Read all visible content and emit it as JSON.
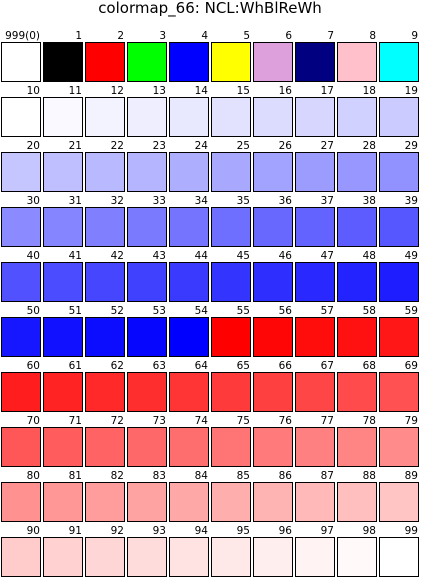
{
  "title": "colormap_66:  NCL:WhBlReWh",
  "cells": [
    {
      "label": "999(0)",
      "color": "#ffffff"
    },
    {
      "label": "1",
      "color": "#000000"
    },
    {
      "label": "2",
      "color": "#ff0000"
    },
    {
      "label": "3",
      "color": "#00ff00"
    },
    {
      "label": "4",
      "color": "#0000ff"
    },
    {
      "label": "5",
      "color": "#ffff00"
    },
    {
      "label": "6",
      "color": "#dda0dd"
    },
    {
      "label": "7",
      "color": "#000080"
    },
    {
      "label": "8",
      "color": "#ffc0cb"
    },
    {
      "label": "9",
      "color": "#00ffff"
    },
    {
      "label": "10",
      "color": "#ffffff"
    },
    {
      "label": "11",
      "color": "#f9f9ff"
    },
    {
      "label": "12",
      "color": "#f3f3ff"
    },
    {
      "label": "13",
      "color": "#eeeeff"
    },
    {
      "label": "14",
      "color": "#e8e8ff"
    },
    {
      "label": "15",
      "color": "#e2e2ff"
    },
    {
      "label": "16",
      "color": "#dcdcff"
    },
    {
      "label": "17",
      "color": "#d6d6ff"
    },
    {
      "label": "18",
      "color": "#d1d1ff"
    },
    {
      "label": "19",
      "color": "#cbcbff"
    },
    {
      "label": "20",
      "color": "#c5c5ff"
    },
    {
      "label": "21",
      "color": "#bfbfff"
    },
    {
      "label": "22",
      "color": "#b9b9ff"
    },
    {
      "label": "23",
      "color": "#b4b4ff"
    },
    {
      "label": "24",
      "color": "#aeaeff"
    },
    {
      "label": "25",
      "color": "#a8a8ff"
    },
    {
      "label": "26",
      "color": "#a2a2ff"
    },
    {
      "label": "27",
      "color": "#9c9cff"
    },
    {
      "label": "28",
      "color": "#9797ff"
    },
    {
      "label": "29",
      "color": "#9191ff"
    },
    {
      "label": "30",
      "color": "#8b8bff"
    },
    {
      "label": "31",
      "color": "#8585ff"
    },
    {
      "label": "32",
      "color": "#8080ff"
    },
    {
      "label": "33",
      "color": "#7a7aff"
    },
    {
      "label": "34",
      "color": "#7474ff"
    },
    {
      "label": "35",
      "color": "#6e6eff"
    },
    {
      "label": "36",
      "color": "#6868ff"
    },
    {
      "label": "37",
      "color": "#6363ff"
    },
    {
      "label": "38",
      "color": "#5d5dff"
    },
    {
      "label": "39",
      "color": "#5757ff"
    },
    {
      "label": "40",
      "color": "#5151ff"
    },
    {
      "label": "41",
      "color": "#4b4bff"
    },
    {
      "label": "42",
      "color": "#4646ff"
    },
    {
      "label": "43",
      "color": "#4040ff"
    },
    {
      "label": "44",
      "color": "#3a3aff"
    },
    {
      "label": "45",
      "color": "#3434ff"
    },
    {
      "label": "46",
      "color": "#2e2eff"
    },
    {
      "label": "47",
      "color": "#2929ff"
    },
    {
      "label": "48",
      "color": "#2323ff"
    },
    {
      "label": "49",
      "color": "#1d1dff"
    },
    {
      "label": "50",
      "color": "#1717ff"
    },
    {
      "label": "51",
      "color": "#1111ff"
    },
    {
      "label": "52",
      "color": "#0c0cff"
    },
    {
      "label": "53",
      "color": "#0606ff"
    },
    {
      "label": "54",
      "color": "#0000ff"
    },
    {
      "label": "55",
      "color": "#ff0000"
    },
    {
      "label": "56",
      "color": "#ff0606"
    },
    {
      "label": "57",
      "color": "#ff0c0c"
    },
    {
      "label": "58",
      "color": "#ff1111"
    },
    {
      "label": "59",
      "color": "#ff1717"
    },
    {
      "label": "60",
      "color": "#ff1d1d"
    },
    {
      "label": "61",
      "color": "#ff2323"
    },
    {
      "label": "62",
      "color": "#ff2929"
    },
    {
      "label": "63",
      "color": "#ff2e2e"
    },
    {
      "label": "64",
      "color": "#ff3434"
    },
    {
      "label": "65",
      "color": "#ff3a3a"
    },
    {
      "label": "66",
      "color": "#ff4040"
    },
    {
      "label": "67",
      "color": "#ff4646"
    },
    {
      "label": "68",
      "color": "#ff4b4b"
    },
    {
      "label": "69",
      "color": "#ff5151"
    },
    {
      "label": "70",
      "color": "#ff5757"
    },
    {
      "label": "71",
      "color": "#ff5d5d"
    },
    {
      "label": "72",
      "color": "#ff6363"
    },
    {
      "label": "73",
      "color": "#ff6868"
    },
    {
      "label": "74",
      "color": "#ff6e6e"
    },
    {
      "label": "75",
      "color": "#ff7474"
    },
    {
      "label": "76",
      "color": "#ff7a7a"
    },
    {
      "label": "77",
      "color": "#ff8080"
    },
    {
      "label": "78",
      "color": "#ff8585"
    },
    {
      "label": "79",
      "color": "#ff8b8b"
    },
    {
      "label": "80",
      "color": "#ff9191"
    },
    {
      "label": "81",
      "color": "#ff9797"
    },
    {
      "label": "82",
      "color": "#ff9c9c"
    },
    {
      "label": "83",
      "color": "#ffa2a2"
    },
    {
      "label": "84",
      "color": "#ffa8a8"
    },
    {
      "label": "85",
      "color": "#ffaeae"
    },
    {
      "label": "86",
      "color": "#ffb4b4"
    },
    {
      "label": "87",
      "color": "#ffb9b9"
    },
    {
      "label": "88",
      "color": "#ffbfbf"
    },
    {
      "label": "89",
      "color": "#ffc5c5"
    },
    {
      "label": "90",
      "color": "#ffcbcb"
    },
    {
      "label": "91",
      "color": "#ffd1d1"
    },
    {
      "label": "92",
      "color": "#ffd6d6"
    },
    {
      "label": "93",
      "color": "#ffdcdc"
    },
    {
      "label": "94",
      "color": "#ffe2e2"
    },
    {
      "label": "95",
      "color": "#ffe8e8"
    },
    {
      "label": "96",
      "color": "#ffeeee"
    },
    {
      "label": "97",
      "color": "#fff3f3"
    },
    {
      "label": "98",
      "color": "#fff9f9"
    },
    {
      "label": "99",
      "color": "#ffffff"
    }
  ]
}
